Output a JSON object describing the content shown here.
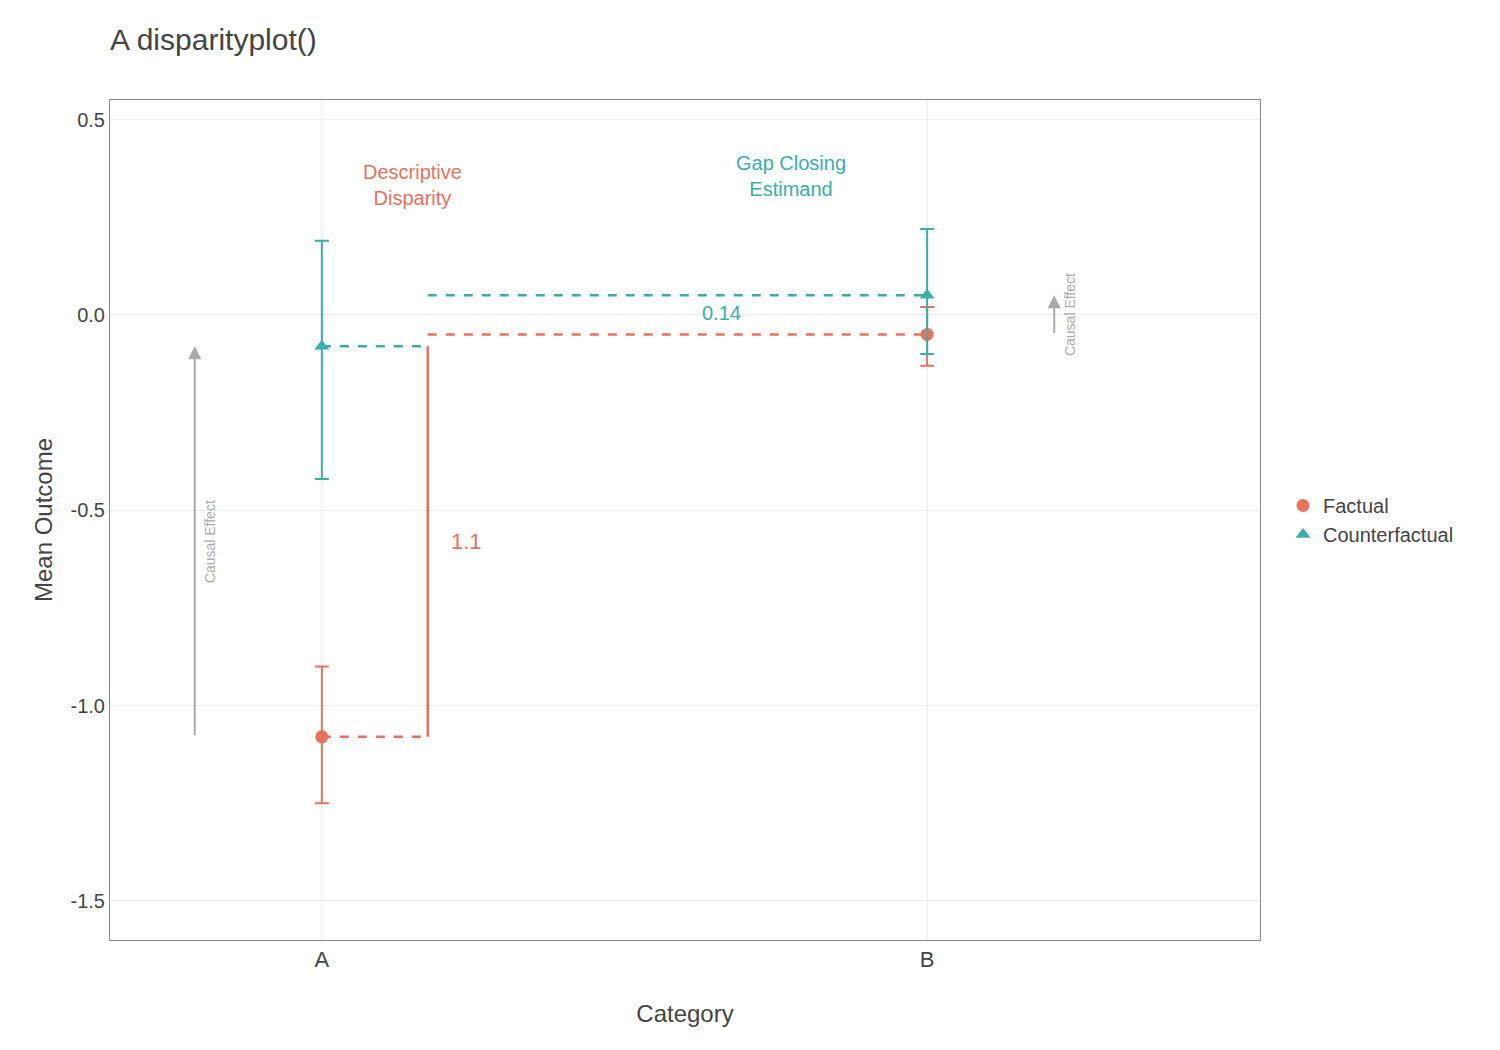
{
  "chart_data": {
    "type": "errorbar",
    "title": "A disparityplot()",
    "x_label": "Category",
    "y_label": "Mean Outcome",
    "categories": [
      "A",
      "B"
    ],
    "series": [
      {
        "name": "Factual",
        "color": "#E8735A",
        "marker": "circle",
        "values": [
          -1.08,
          -0.05
        ],
        "ci_low": [
          -1.25,
          -0.13
        ],
        "ci_high": [
          -0.9,
          0.02
        ]
      },
      {
        "name": "Counterfactual",
        "color": "#3AAFA9",
        "marker": "triangle",
        "values": [
          -0.08,
          0.05
        ],
        "ci_low": [
          -0.42,
          -0.1
        ],
        "ci_high": [
          0.19,
          0.22
        ]
      }
    ],
    "annotations": [
      {
        "text": "Descriptive\nDisparity",
        "color": "#E8735A"
      },
      {
        "text": "1.1",
        "color": "#E8735A"
      },
      {
        "text": "Gap Closing\nEstimand",
        "color": "#3AAFA9"
      },
      {
        "text": "0.14",
        "color": "#3AAFA9"
      },
      {
        "text": "Causal Effect",
        "color": "#aaaaaa"
      },
      {
        "text": "Causal Effect",
        "color": "#aaaaaa"
      }
    ],
    "ylim": [
      -1.6,
      0.55
    ],
    "yticks": [
      -1.5,
      {
        "value": -1.0,
        "label": "-1.0"
      },
      -0.5,
      {
        "value": 0,
        "label": "0.0"
      },
      0.5
    ],
    "grid": true,
    "legend": "right"
  }
}
